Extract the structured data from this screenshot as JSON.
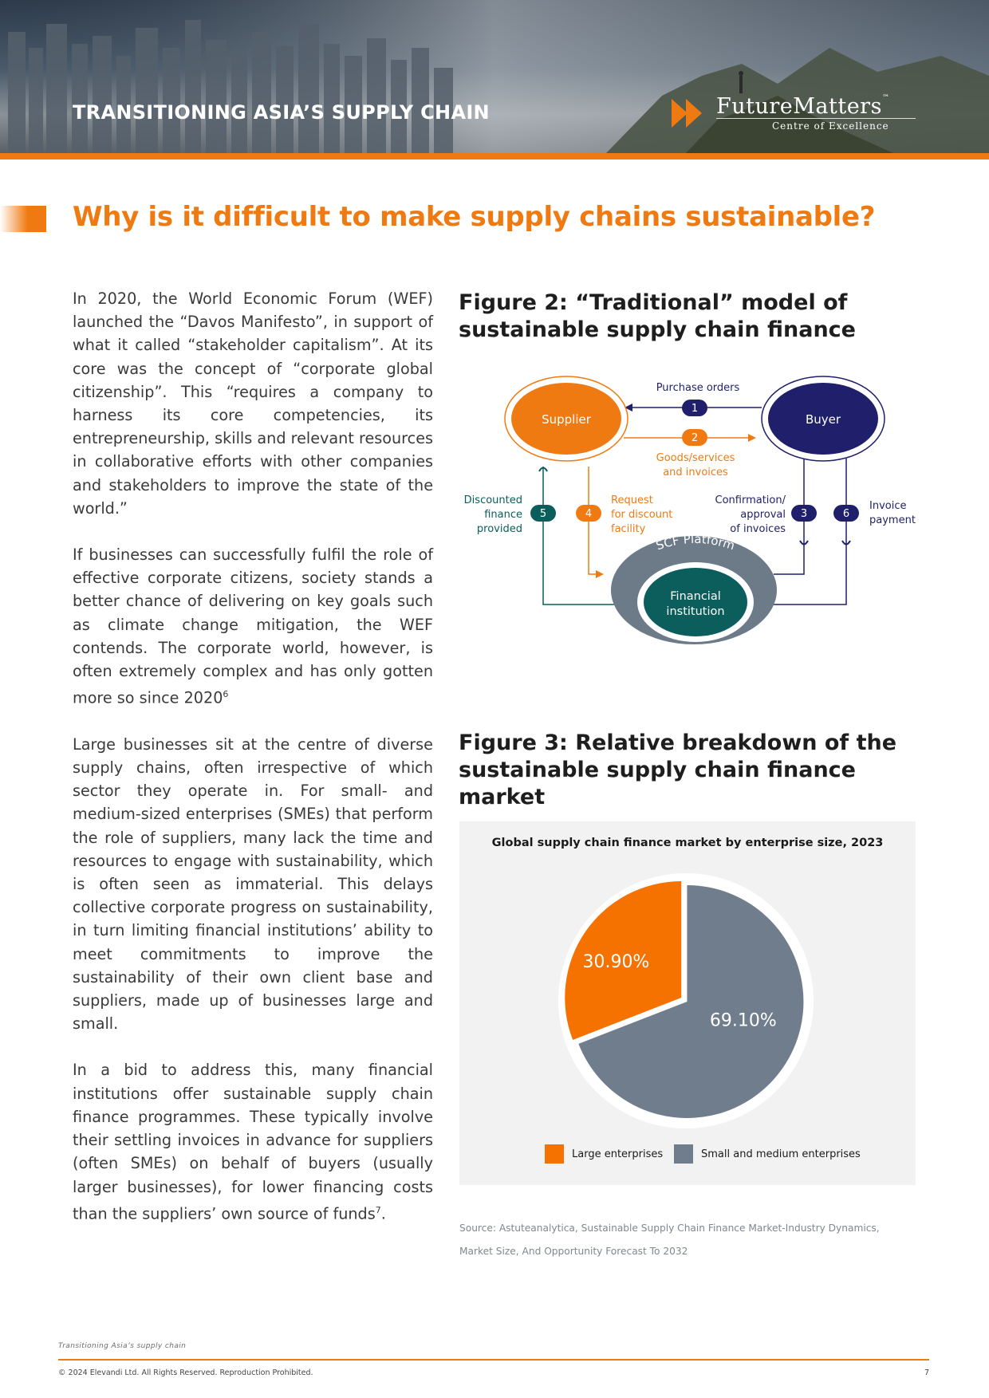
{
  "header": {
    "banner_title": "TRANSITIONING ASIA’S SUPPLY CHAIN",
    "logo_name": "FutureMatters",
    "logo_tm": "™",
    "logo_sub": "Centre of Excellence"
  },
  "page_title": "Why is it difficult to make supply chains sustainable?",
  "body": {
    "p1": "In 2020, the World Economic Forum (WEF) launched the “Davos Manifesto”, in support of what it called “stakeholder capitalism”. At its core was the concept of “corporate global citizenship”. This “requires a company to harness its core competencies, its entrepreneurship, skills and relevant resources in collaborative efforts with other companies and stakeholders to improve the state of the world.”",
    "p2": "If businesses can successfully fulfil the role of effective corporate citizens, society stands a better chance of delivering on key goals such as climate change mitigation, the WEF contends. The corporate world, however, is often extremely complex and has only gotten more so since 2020",
    "p2_sup": "6",
    "p3": "Large businesses sit at the centre of diverse supply chains, often irrespective of which sector they operate in. For small- and medium-sized enterprises (SMEs) that perform the role of suppliers, many lack the time and resources to engage with sustainability, which is often seen as immaterial. This delays collective corporate progress on sustainability, in turn limiting financial institutions’ ability to meet commitments to improve the sustainability of their own client base and suppliers, made up of businesses large and small.",
    "p4": "In a bid to address this, many financial institutions offer sustainable supply chain finance programmes. These typically involve their settling invoices in advance for suppliers (often SMEs) on behalf of buyers (usually larger businesses), for lower financing costs than the suppliers’ own source of funds",
    "p4_sup": "7",
    "p4_end": "."
  },
  "figure2": {
    "title": "Figure 2: “Traditional” model of sustainable supply chain finance",
    "supplier": "Supplier",
    "buyer": "Buyer",
    "platform": "SCF Platform",
    "institution_line1": "Financial",
    "institution_line2": "institution",
    "steps": [
      {
        "num": "1",
        "lines": [
          "Purchase orders"
        ]
      },
      {
        "num": "2",
        "lines": [
          "Goods/services",
          "and invoices"
        ]
      },
      {
        "num": "3",
        "lines": [
          "Confirmation/",
          "approval",
          "of invoices"
        ]
      },
      {
        "num": "4",
        "lines": [
          "Request",
          "for discount",
          "facility"
        ]
      },
      {
        "num": "5",
        "lines": [
          "Discounted",
          "finance",
          "provided"
        ]
      },
      {
        "num": "6",
        "lines": [
          "Invoice",
          "payment"
        ]
      }
    ],
    "colors": {
      "orange": "#f07a12",
      "navy": "#1f1f6b",
      "teal": "#0b5e5c",
      "grey": "#6d7a88"
    }
  },
  "figure3": {
    "title": "Figure 3: Relative breakdown of the sustainable supply chain finance market",
    "source_line1": "Source: Astuteanalytica, Sustainable Supply Chain Finance Market-Industry Dynamics,",
    "source_line2": "Market Size, And Opportunity Forecast To 2032"
  },
  "chart_data": {
    "type": "pie",
    "title": "Global supply chain finance market by enterprise size, 2023",
    "categories": [
      "Large enterprises",
      "Small and medium enterprises"
    ],
    "values": [
      30.9,
      69.1
    ],
    "labels": [
      "30.90%",
      "69.10%"
    ],
    "colors": [
      "#f57200",
      "#707d8c"
    ],
    "legend": "bottom"
  },
  "footer": {
    "running_title": "Transitioning Asia’s supply chain",
    "copyright": "© 2024 Elevandi Ltd. All Rights Reserved. Reproduction Prohibited.",
    "page_number": "7"
  }
}
